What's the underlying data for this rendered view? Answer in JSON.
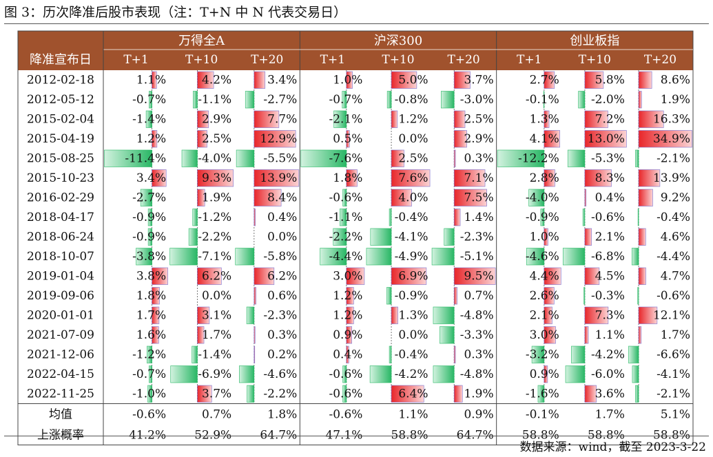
{
  "title": "图 3：历次降准后股市表现（注：T+N 中 N 代表交易日）",
  "source": "数据来源：wind，截至 2023-3-22",
  "colors": {
    "header": "#a0522d",
    "pos": "#e8262a",
    "neg": "#29b765"
  },
  "chart_data": {
    "type": "table",
    "row_header_label": "降准宣布日",
    "groups": [
      {
        "name": "万得全A",
        "columns": [
          "T+1",
          "T+10",
          "T+20"
        ]
      },
      {
        "name": "沪深300",
        "columns": [
          "T+1",
          "T+10",
          "T+20"
        ]
      },
      {
        "name": "创业板指",
        "columns": [
          "T+1",
          "T+10",
          "T+20"
        ]
      }
    ],
    "rows": [
      {
        "date": "2012-02-18",
        "values": [
          1.1,
          4.2,
          3.4,
          1.0,
          5.0,
          3.7,
          2.7,
          5.8,
          8.6
        ]
      },
      {
        "date": "2012-05-12",
        "values": [
          -0.7,
          -1.1,
          -2.7,
          -0.7,
          -0.8,
          -3.0,
          -0.1,
          -2.0,
          1.9
        ]
      },
      {
        "date": "2015-02-04",
        "values": [
          -1.4,
          2.9,
          7.7,
          -2.1,
          1.2,
          2.5,
          1.3,
          7.2,
          16.3
        ]
      },
      {
        "date": "2015-04-19",
        "values": [
          1.2,
          2.5,
          12.9,
          0.5,
          0.0,
          2.9,
          4.1,
          13.0,
          34.9
        ]
      },
      {
        "date": "2015-08-25",
        "values": [
          -11.4,
          -4.0,
          -5.5,
          -7.6,
          2.5,
          0.3,
          -12.2,
          -5.3,
          -2.1
        ]
      },
      {
        "date": "2015-10-23",
        "values": [
          3.4,
          9.3,
          13.9,
          1.8,
          7.6,
          7.1,
          2.8,
          8.3,
          13.9
        ]
      },
      {
        "date": "2016-02-29",
        "values": [
          -2.7,
          1.9,
          8.4,
          -0.6,
          4.0,
          7.5,
          -4.0,
          0.4,
          9.2
        ]
      },
      {
        "date": "2018-04-17",
        "values": [
          -0.9,
          -1.2,
          0.4,
          -1.1,
          -0.4,
          1.4,
          -0.9,
          -0.6,
          -0.4
        ]
      },
      {
        "date": "2018-06-24",
        "values": [
          -0.9,
          -2.2,
          0.0,
          -2.2,
          -4.1,
          -2.3,
          1.0,
          2.1,
          4.6
        ]
      },
      {
        "date": "2018-10-07",
        "values": [
          -3.8,
          -7.1,
          -5.8,
          -4.4,
          -4.9,
          -5.1,
          -4.6,
          -6.8,
          -4.4
        ]
      },
      {
        "date": "2019-01-04",
        "values": [
          3.8,
          6.2,
          6.2,
          3.0,
          6.9,
          9.5,
          4.4,
          4.5,
          4.7
        ]
      },
      {
        "date": "2019-09-06",
        "values": [
          1.8,
          0.0,
          0.6,
          1.2,
          -0.9,
          0.7,
          2.6,
          -0.3,
          -0.6
        ]
      },
      {
        "date": "2020-01-01",
        "values": [
          1.7,
          3.1,
          -2.3,
          1.2,
          1.3,
          -4.8,
          2.1,
          7.3,
          12.1
        ]
      },
      {
        "date": "2021-07-09",
        "values": [
          1.6,
          1.7,
          0.3,
          0.9,
          0.0,
          -3.3,
          3.0,
          1.1,
          1.7
        ]
      },
      {
        "date": "2021-12-06",
        "values": [
          -1.2,
          -1.4,
          0.2,
          0.4,
          -0.4,
          0.3,
          -3.2,
          -4.2,
          -6.6
        ]
      },
      {
        "date": "2022-04-15",
        "values": [
          -0.7,
          -6.9,
          -4.6,
          -0.6,
          -4.2,
          -4.8,
          0.9,
          -6.0,
          -4.1
        ]
      },
      {
        "date": "2022-11-25",
        "values": [
          -1.0,
          3.7,
          -2.2,
          -0.6,
          6.4,
          1.9,
          -1.6,
          3.6,
          -2.1
        ]
      }
    ],
    "summary": [
      {
        "label": "均值",
        "values": [
          "-0.6%",
          "0.7%",
          "1.8%",
          "-0.6%",
          "1.1%",
          "0.9%",
          "-0.1%",
          "1.7%",
          "5.1%"
        ]
      },
      {
        "label": "上涨概率",
        "values": [
          "41.2%",
          "52.9%",
          "64.7%",
          "47.1%",
          "58.8%",
          "64.7%",
          "58.8%",
          "58.8%",
          "58.8%"
        ]
      }
    ]
  }
}
